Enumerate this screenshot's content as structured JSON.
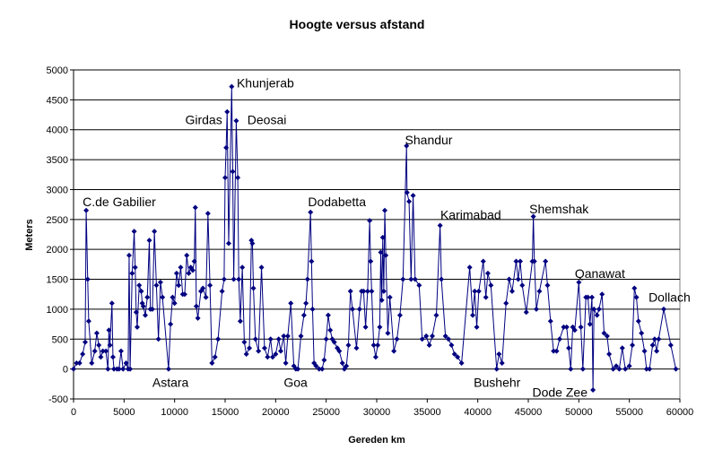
{
  "chart_data": {
    "type": "line",
    "title": "Hoogte versus afstand",
    "xlabel": "Gereden km",
    "ylabel": "Meters",
    "xlim": [
      0,
      60000
    ],
    "ylim": [
      -500,
      5000
    ],
    "xticks": [
      0,
      5000,
      10000,
      15000,
      20000,
      25000,
      30000,
      35000,
      40000,
      45000,
      50000,
      55000,
      60000
    ],
    "yticks": [
      -500,
      0,
      500,
      1000,
      1500,
      2000,
      2500,
      3000,
      3500,
      4000,
      4500,
      5000
    ],
    "grid": "horizontal",
    "legend": "none",
    "series_color": "#000080",
    "points": [
      [
        0,
        0
      ],
      [
        300,
        100
      ],
      [
        600,
        100
      ],
      [
        900,
        250
      ],
      [
        1150,
        450
      ],
      [
        1250,
        2650
      ],
      [
        1400,
        1500
      ],
      [
        1500,
        800
      ],
      [
        1800,
        100
      ],
      [
        2100,
        300
      ],
      [
        2300,
        600
      ],
      [
        2500,
        400
      ],
      [
        2700,
        200
      ],
      [
        2900,
        300
      ],
      [
        3200,
        300
      ],
      [
        3400,
        0
      ],
      [
        3500,
        650
      ],
      [
        3600,
        400
      ],
      [
        3800,
        1100
      ],
      [
        3900,
        200
      ],
      [
        4000,
        0
      ],
      [
        4300,
        0
      ],
      [
        4500,
        0
      ],
      [
        4700,
        300
      ],
      [
        4900,
        0
      ],
      [
        5200,
        100
      ],
      [
        5400,
        0
      ],
      [
        5500,
        1900
      ],
      [
        5600,
        0
      ],
      [
        5800,
        1600
      ],
      [
        6000,
        2300
      ],
      [
        6100,
        1700
      ],
      [
        6200,
        950
      ],
      [
        6300,
        700
      ],
      [
        6500,
        1400
      ],
      [
        6700,
        1300
      ],
      [
        6800,
        1100
      ],
      [
        6900,
        1050
      ],
      [
        7100,
        900
      ],
      [
        7300,
        1200
      ],
      [
        7500,
        2150
      ],
      [
        7600,
        1000
      ],
      [
        7800,
        1000
      ],
      [
        8000,
        2300
      ],
      [
        8200,
        1400
      ],
      [
        8400,
        500
      ],
      [
        8600,
        1450
      ],
      [
        8800,
        1200
      ],
      [
        9400,
        0
      ],
      [
        9600,
        750
      ],
      [
        9800,
        1200
      ],
      [
        10000,
        1100
      ],
      [
        10200,
        1600
      ],
      [
        10400,
        1400
      ],
      [
        10600,
        1700
      ],
      [
        10800,
        1250
      ],
      [
        11000,
        1250
      ],
      [
        11200,
        1900
      ],
      [
        11400,
        1600
      ],
      [
        11600,
        1700
      ],
      [
        11800,
        1650
      ],
      [
        11950,
        1800
      ],
      [
        12050,
        2700
      ],
      [
        12150,
        1050
      ],
      [
        12300,
        850
      ],
      [
        12600,
        1300
      ],
      [
        12800,
        1350
      ],
      [
        13100,
        1200
      ],
      [
        13300,
        2600
      ],
      [
        13500,
        1400
      ],
      [
        13700,
        100
      ],
      [
        14000,
        200
      ],
      [
        14300,
        500
      ],
      [
        14700,
        1300
      ],
      [
        14900,
        1500
      ],
      [
        15000,
        3200
      ],
      [
        15100,
        3700
      ],
      [
        15200,
        4300
      ],
      [
        15350,
        2100
      ],
      [
        15650,
        4720
      ],
      [
        15750,
        3300
      ],
      [
        15850,
        1500
      ],
      [
        16100,
        4150
      ],
      [
        16250,
        3200
      ],
      [
        16350,
        1500
      ],
      [
        16500,
        800
      ],
      [
        16700,
        1700
      ],
      [
        16900,
        450
      ],
      [
        17100,
        250
      ],
      [
        17400,
        350
      ],
      [
        17600,
        2150
      ],
      [
        17700,
        2100
      ],
      [
        17800,
        1350
      ],
      [
        18000,
        500
      ],
      [
        18300,
        300
      ],
      [
        18600,
        1700
      ],
      [
        18900,
        350
      ],
      [
        19200,
        200
      ],
      [
        19500,
        500
      ],
      [
        19700,
        200
      ],
      [
        20000,
        250
      ],
      [
        20300,
        500
      ],
      [
        20500,
        300
      ],
      [
        20800,
        550
      ],
      [
        21000,
        100
      ],
      [
        21200,
        550
      ],
      [
        21500,
        1100
      ],
      [
        21800,
        50
      ],
      [
        22000,
        0
      ],
      [
        22200,
        0
      ],
      [
        22500,
        550
      ],
      [
        22800,
        900
      ],
      [
        23000,
        1100
      ],
      [
        23150,
        1500
      ],
      [
        23450,
        2620
      ],
      [
        23550,
        1800
      ],
      [
        23650,
        1000
      ],
      [
        23800,
        100
      ],
      [
        24000,
        50
      ],
      [
        24300,
        0
      ],
      [
        24600,
        0
      ],
      [
        24800,
        150
      ],
      [
        25000,
        500
      ],
      [
        25200,
        900
      ],
      [
        25400,
        650
      ],
      [
        25600,
        500
      ],
      [
        25800,
        450
      ],
      [
        26100,
        350
      ],
      [
        26300,
        300
      ],
      [
        26600,
        100
      ],
      [
        26800,
        0
      ],
      [
        27000,
        50
      ],
      [
        27200,
        400
      ],
      [
        27400,
        1300
      ],
      [
        27600,
        1000
      ],
      [
        28000,
        350
      ],
      [
        28300,
        1000
      ],
      [
        28500,
        1300
      ],
      [
        28700,
        1300
      ],
      [
        28900,
        700
      ],
      [
        29100,
        1300
      ],
      [
        29300,
        2480
      ],
      [
        29400,
        1800
      ],
      [
        29500,
        1300
      ],
      [
        29700,
        400
      ],
      [
        29900,
        200
      ],
      [
        30100,
        400
      ],
      [
        30300,
        700
      ],
      [
        30400,
        1950
      ],
      [
        30500,
        1150
      ],
      [
        30600,
        2200
      ],
      [
        30700,
        1300
      ],
      [
        30800,
        2650
      ],
      [
        30900,
        1900
      ],
      [
        31100,
        600
      ],
      [
        31300,
        1200
      ],
      [
        31700,
        300
      ],
      [
        32000,
        500
      ],
      [
        32300,
        900
      ],
      [
        32600,
        1500
      ],
      [
        32950,
        3730
      ],
      [
        33000,
        2950
      ],
      [
        33200,
        2800
      ],
      [
        33400,
        1500
      ],
      [
        33600,
        2900
      ],
      [
        33800,
        1500
      ],
      [
        34200,
        1400
      ],
      [
        34500,
        500
      ],
      [
        34900,
        550
      ],
      [
        35200,
        400
      ],
      [
        35500,
        550
      ],
      [
        35900,
        900
      ],
      [
        36270,
        2400
      ],
      [
        36400,
        1500
      ],
      [
        36800,
        550
      ],
      [
        37100,
        500
      ],
      [
        37400,
        400
      ],
      [
        37700,
        250
      ],
      [
        38000,
        200
      ],
      [
        38400,
        100
      ],
      [
        39200,
        1700
      ],
      [
        39500,
        900
      ],
      [
        39700,
        1300
      ],
      [
        39900,
        700
      ],
      [
        40100,
        1300
      ],
      [
        40540,
        1800
      ],
      [
        40800,
        1200
      ],
      [
        41000,
        1600
      ],
      [
        41300,
        1400
      ],
      [
        41870,
        0
      ],
      [
        42100,
        250
      ],
      [
        42400,
        100
      ],
      [
        42800,
        1100
      ],
      [
        43100,
        1500
      ],
      [
        43400,
        1300
      ],
      [
        43800,
        1800
      ],
      [
        44000,
        1500
      ],
      [
        44200,
        1800
      ],
      [
        44400,
        1400
      ],
      [
        44800,
        950
      ],
      [
        45400,
        1800
      ],
      [
        45500,
        2550
      ],
      [
        45600,
        1800
      ],
      [
        45800,
        1000
      ],
      [
        46100,
        1300
      ],
      [
        46700,
        1800
      ],
      [
        46900,
        1400
      ],
      [
        47200,
        800
      ],
      [
        47500,
        300
      ],
      [
        47800,
        300
      ],
      [
        48100,
        500
      ],
      [
        48500,
        700
      ],
      [
        48800,
        700
      ],
      [
        49000,
        350
      ],
      [
        49200,
        0
      ],
      [
        49400,
        700
      ],
      [
        49600,
        650
      ],
      [
        50000,
        1450
      ],
      [
        50200,
        700
      ],
      [
        50400,
        0
      ],
      [
        50700,
        1200
      ],
      [
        50900,
        1200
      ],
      [
        51100,
        750
      ],
      [
        51300,
        1200
      ],
      [
        51400,
        -350
      ],
      [
        51500,
        1000
      ],
      [
        51800,
        900
      ],
      [
        52000,
        1000
      ],
      [
        52300,
        1250
      ],
      [
        52500,
        600
      ],
      [
        52800,
        550
      ],
      [
        53000,
        250
      ],
      [
        53400,
        0
      ],
      [
        53700,
        50
      ],
      [
        54000,
        0
      ],
      [
        54300,
        350
      ],
      [
        54600,
        0
      ],
      [
        55000,
        50
      ],
      [
        55300,
        400
      ],
      [
        55500,
        1350
      ],
      [
        55700,
        1200
      ],
      [
        55900,
        800
      ],
      [
        56200,
        600
      ],
      [
        56500,
        300
      ],
      [
        56700,
        0
      ],
      [
        57000,
        0
      ],
      [
        57300,
        400
      ],
      [
        57500,
        500
      ],
      [
        57700,
        300
      ],
      [
        57900,
        500
      ],
      [
        58400,
        1000
      ],
      [
        59100,
        400
      ],
      [
        59600,
        0
      ]
    ],
    "annotations": [
      {
        "text": "C.de Gabilier",
        "x": 900,
        "y": 2800
      },
      {
        "text": "Khunjerab",
        "x": 16150,
        "y": 4780
      },
      {
        "text": "Girdas",
        "x": 11050,
        "y": 4170
      },
      {
        "text": "Deosai",
        "x": 17200,
        "y": 4170
      },
      {
        "text": "Shandur",
        "x": 32800,
        "y": 3830
      },
      {
        "text": "Dodabetta",
        "x": 23200,
        "y": 2800
      },
      {
        "text": "Karimabad",
        "x": 36300,
        "y": 2580
      },
      {
        "text": "Shemshak",
        "x": 45100,
        "y": 2680
      },
      {
        "text": "Qanawat",
        "x": 49600,
        "y": 1600
      },
      {
        "text": "Dollach",
        "x": 56900,
        "y": 1200
      },
      {
        "text": "Astara",
        "x": 7800,
        "y": -220
      },
      {
        "text": "Goa",
        "x": 20800,
        "y": -220
      },
      {
        "text": "Bushehr",
        "x": 39600,
        "y": -220
      },
      {
        "text": "Dode Zee",
        "x": 45400,
        "y": -390
      }
    ]
  }
}
